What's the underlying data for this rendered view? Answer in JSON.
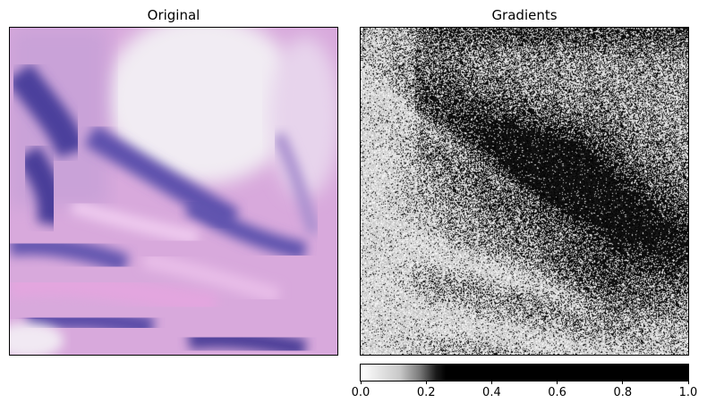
{
  "panels": {
    "left_title": "Original",
    "right_title": "Gradients"
  },
  "colorbar": {
    "ticks": [
      "0.0",
      "0.2",
      "0.4",
      "0.6",
      "0.8",
      "1.0"
    ],
    "min": 0.0,
    "max": 1.0,
    "colormap": "binary"
  },
  "colors": {
    "tissue_light": "#e9d6ec",
    "tissue_pink": "#d79bd6",
    "nucleus_purple": "#5a4ca3",
    "nucleus_dark": "#3d3484",
    "background_white": "#f4eef6"
  }
}
